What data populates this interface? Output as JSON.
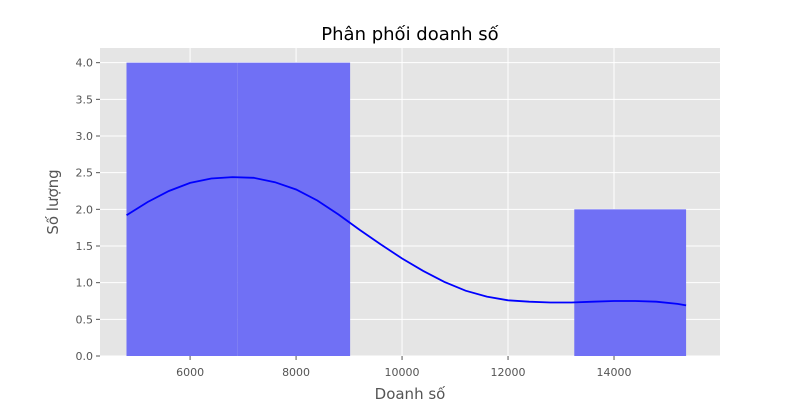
{
  "chart_data": {
    "type": "bar",
    "title": "Phân phối doanh số",
    "xlabel": "Doanh số",
    "ylabel": "Số lượng",
    "xlim": [
      4300,
      16000
    ],
    "ylim": [
      0,
      4.2
    ],
    "xticks": [
      6000,
      8000,
      10000,
      12000,
      14000
    ],
    "yticks": [
      0.0,
      0.5,
      1.0,
      1.5,
      2.0,
      2.5,
      3.0,
      3.5,
      4.0
    ],
    "ytick_labels": [
      "0.0",
      "0.5",
      "1.0",
      "1.5",
      "2.0",
      "2.5",
      "3.0",
      "3.5",
      "4.0"
    ],
    "grid": true,
    "bins": [
      {
        "x0": 4800,
        "x1": 6900,
        "count": 4
      },
      {
        "x0": 6900,
        "x1": 9020,
        "count": 4
      },
      {
        "x0": 9020,
        "x1": 11140,
        "count": 0
      },
      {
        "x0": 11140,
        "x1": 13250,
        "count": 0
      },
      {
        "x0": 13250,
        "x1": 15360,
        "count": 2
      }
    ],
    "kde": {
      "x": [
        4800,
        5200,
        5600,
        6000,
        6400,
        6800,
        7200,
        7600,
        8000,
        8400,
        8800,
        9200,
        9600,
        10000,
        10400,
        10800,
        11200,
        11600,
        12000,
        12400,
        12800,
        13200,
        13600,
        14000,
        14400,
        14800,
        15200,
        15360
      ],
      "y": [
        1.92,
        2.1,
        2.25,
        2.36,
        2.42,
        2.44,
        2.43,
        2.37,
        2.27,
        2.12,
        1.93,
        1.72,
        1.52,
        1.33,
        1.16,
        1.01,
        0.89,
        0.81,
        0.76,
        0.74,
        0.73,
        0.73,
        0.74,
        0.75,
        0.75,
        0.74,
        0.71,
        0.69
      ]
    },
    "colors": {
      "bar": "#7070f5",
      "kde": "#0000ff",
      "plot_bg": "#e5e5e5",
      "grid": "#ffffff"
    }
  }
}
